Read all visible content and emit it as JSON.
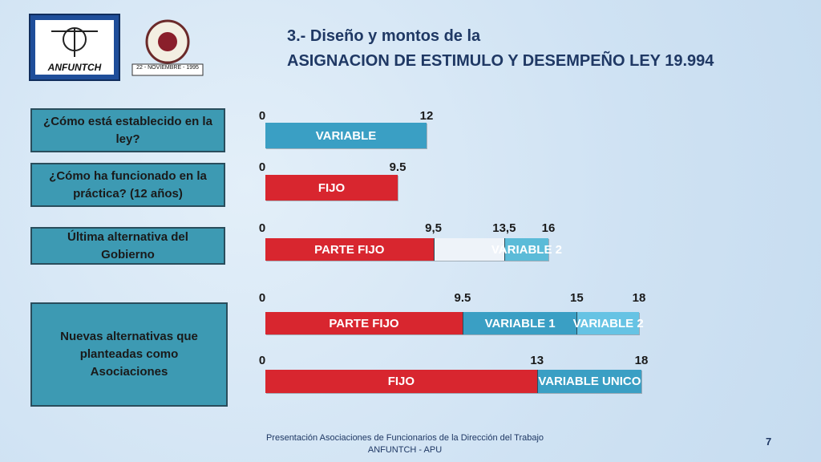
{
  "header": {
    "logo_text": "ANFUNTCH",
    "logo2_text": "22 - NOVIEMBRE - 1995",
    "title_line1": "3.- Diseño y montos de la",
    "title_line2": "ASIGNACION DE ESTIMULO Y DESEMPEÑO LEY 19.994"
  },
  "rows": [
    {
      "question": "¿Cómo está establecido en la ley?",
      "bars": [
        {
          "ticks": [
            0,
            12
          ],
          "segments": [
            {
              "label": "VARIABLE",
              "value": 12,
              "color": "#3a9fc4"
            }
          ]
        }
      ]
    },
    {
      "question": "¿Cómo ha funcionado en la práctica? (12 años)",
      "bars": [
        {
          "ticks": [
            0,
            9.5
          ],
          "segments": [
            {
              "label": "FIJO",
              "value": 9.5,
              "color": "#d8262f"
            }
          ]
        }
      ]
    },
    {
      "question": "Última alternativa del Gobierno",
      "bars": [
        {
          "ticks": [
            0,
            {
              "value": 9.5,
              "label": "9,5"
            },
            {
              "value": 13.5,
              "label": "13,5"
            },
            16
          ],
          "segments": [
            {
              "label": "PARTE FIJO",
              "value": 9.5,
              "color": "#d8262f"
            },
            {
              "label": null,
              "value": 4,
              "color": "#eef3f9"
            },
            {
              "label": "VARIABLE 2",
              "value": 2.5,
              "color": "#5bbbd8"
            }
          ]
        }
      ]
    },
    {
      "question": "Nuevas alternativas que planteadas como Asociaciones",
      "bars": [
        {
          "ticks": [
            0,
            9.5,
            15,
            18
          ],
          "segments": [
            {
              "label": "PARTE FIJO",
              "value": 9.5,
              "color": "#d8262f"
            },
            {
              "label": "VARIABLE  1",
              "value": 5.5,
              "color": "#3a9fc4"
            },
            {
              "label": "VARIABLE 2",
              "value": 3,
              "color": "#66c3e4"
            }
          ]
        },
        {
          "ticks": [
            0,
            13,
            18
          ],
          "segments": [
            {
              "label": "FIJO",
              "value": 13,
              "color": "#d8262f"
            },
            {
              "label": "VARIABLE  UNICO",
              "value": 5,
              "color": "#3a9fc4"
            }
          ]
        }
      ]
    }
  ],
  "footer": {
    "line1": "Presentación Asociaciones de Funcionarios de la Dirección del Trabajo",
    "line2": "ANFUNTCH - APU",
    "page_number": 7
  }
}
